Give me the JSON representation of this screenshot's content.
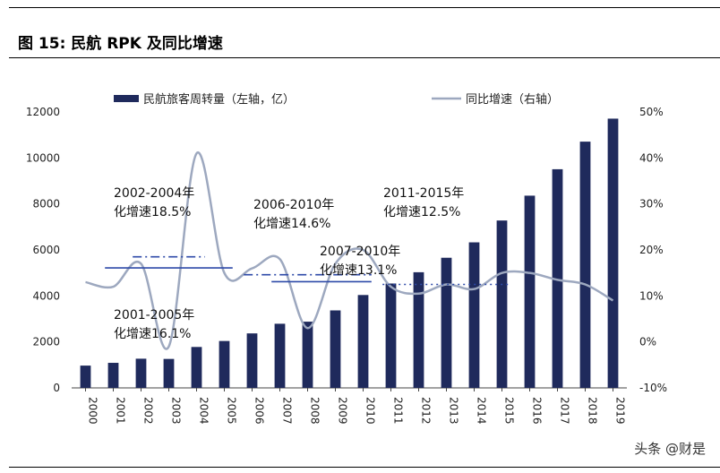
{
  "figure": {
    "title": "图 15: 民航 RPK 及同比增速"
  },
  "watermark": "头条 @财是",
  "chart_data": {
    "type": "bar+line",
    "categories": [
      "2000",
      "2001",
      "2002",
      "2003",
      "2004",
      "2005",
      "2006",
      "2007",
      "2008",
      "2009",
      "2010",
      "2011",
      "2012",
      "2013",
      "2014",
      "2015",
      "2016",
      "2017",
      "2018",
      "2019"
    ],
    "series": [
      {
        "name": "民航旅客周转量（左轴，亿）",
        "type": "bar",
        "axis": "left",
        "color": "#1f2a5c",
        "values": [
          970,
          1090,
          1270,
          1260,
          1780,
          2040,
          2370,
          2790,
          2880,
          3370,
          4040,
          4540,
          5030,
          5660,
          6330,
          7280,
          8360,
          9510,
          10710,
          11710
        ]
      },
      {
        "name": "同比增速（右轴）",
        "type": "line",
        "axis": "right",
        "unit": "%",
        "color": "#9da8bf",
        "values": [
          13,
          12,
          17,
          -1,
          41,
          15,
          16,
          18,
          3,
          17,
          20,
          12,
          10.5,
          12.5,
          11.5,
          15,
          15,
          13.5,
          12.5,
          9
        ]
      }
    ],
    "left_axis": {
      "min": 0,
      "max": 12000,
      "ticks": [
        "0",
        "2000",
        "4000",
        "6000",
        "8000",
        "10000",
        "12000"
      ]
    },
    "right_axis": {
      "min": -10,
      "max": 50,
      "ticks": [
        "-10%",
        "0%",
        "10%",
        "20%",
        "30%",
        "40%",
        "50%"
      ]
    },
    "legend": {
      "position": "top"
    },
    "annotations": [
      {
        "line1": "2002-2004年",
        "line2": "化增速18.5%",
        "rate": 18.5,
        "start": "2002",
        "end": "2004",
        "style": "dashdot"
      },
      {
        "line1": "2006-2010年",
        "line2": "化增速14.6%",
        "rate": 14.6,
        "start": "2006",
        "end": "2010",
        "style": "dashdot"
      },
      {
        "line1": "2011-2015年",
        "line2": "化增速12.5%",
        "rate": 12.5,
        "start": "2011",
        "end": "2015",
        "style": "dotted"
      },
      {
        "line1": "2007-2010年",
        "line2": "化增速13.1%",
        "rate": 13.1,
        "start": "2007",
        "end": "2010",
        "style": "solid"
      },
      {
        "line1": "2001-2005年",
        "line2": "化增速16.1%",
        "rate": 16.1,
        "start": "2001",
        "end": "2005",
        "style": "solid"
      }
    ]
  }
}
